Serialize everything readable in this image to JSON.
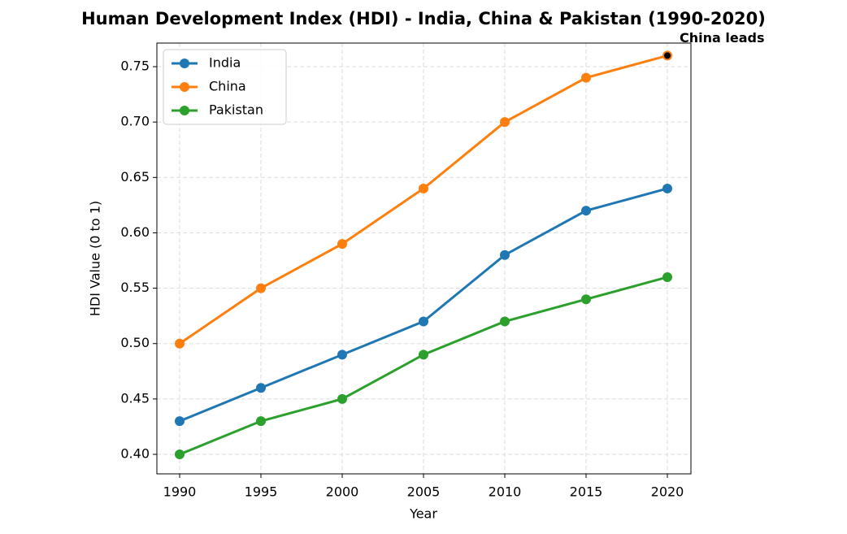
{
  "chart_data": {
    "type": "line",
    "title": "Human Development Index (HDI) - India, China & Pakistan (1990-2020)",
    "x_label": "Year",
    "y_label": "HDI Value (0 to 1)",
    "x": [
      1990,
      1995,
      2000,
      2005,
      2010,
      2015,
      2020
    ],
    "series": [
      {
        "name": "India",
        "color": "#1f77b4",
        "values": [
          0.43,
          0.46,
          0.49,
          0.52,
          0.58,
          0.62,
          0.64
        ]
      },
      {
        "name": "China",
        "color": "#ff7f0e",
        "values": [
          0.5,
          0.55,
          0.59,
          0.64,
          0.7,
          0.74,
          0.76
        ]
      },
      {
        "name": "Pakistan",
        "color": "#2ca02c",
        "values": [
          0.4,
          0.43,
          0.45,
          0.49,
          0.52,
          0.54,
          0.56
        ]
      }
    ],
    "xlim": [
      1988.6,
      2021.45
    ],
    "ylim": [
      0.3824,
      0.7713
    ],
    "xticks": [
      1990,
      1995,
      2000,
      2005,
      2010,
      2015,
      2020
    ],
    "yticks": [
      {
        "value": 0.4,
        "label": "0.40"
      },
      {
        "value": 0.45,
        "label": "0.45"
      },
      {
        "value": 0.5,
        "label": "0.50"
      },
      {
        "value": 0.55,
        "label": "0.55"
      },
      {
        "value": 0.6,
        "label": "0.60"
      },
      {
        "value": 0.65,
        "label": "0.65"
      },
      {
        "value": 0.7,
        "label": "0.70"
      },
      {
        "value": 0.75,
        "label": "0.75"
      }
    ],
    "grid": true,
    "legend": "upper-left",
    "annotation": {
      "text": "China leads",
      "x": 2020,
      "y": 0.76
    }
  }
}
